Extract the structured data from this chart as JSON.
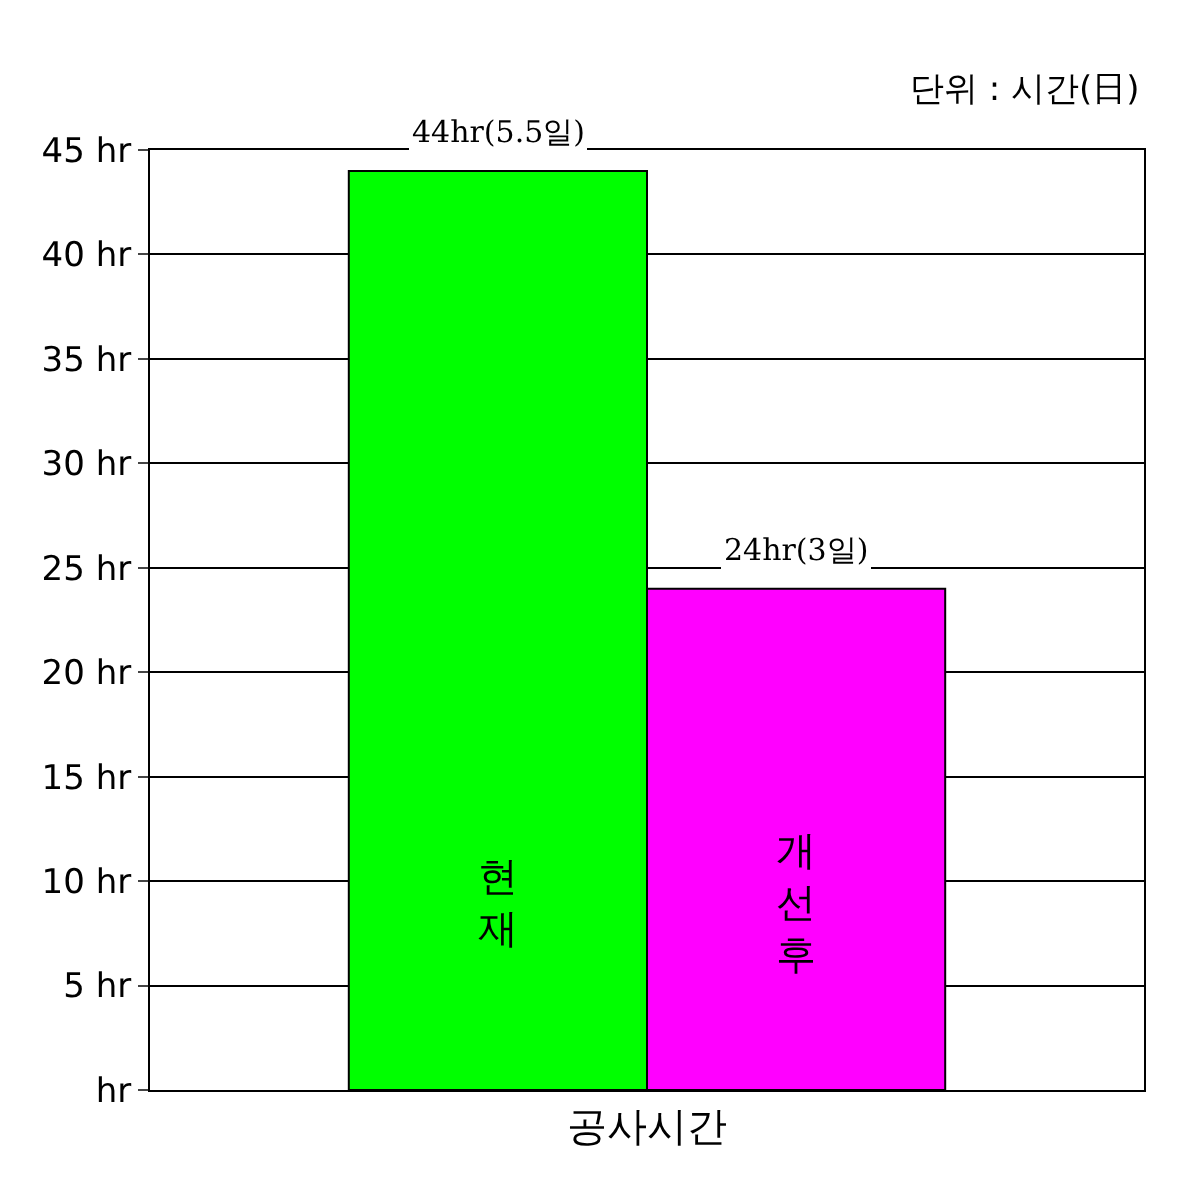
{
  "chart_data": {
    "type": "bar",
    "annotations": [
      "단위 : 시간(日)"
    ],
    "categories": [
      "공사시간"
    ],
    "series": [
      {
        "name": "현재",
        "color": "#00ff00",
        "values": [
          44
        ],
        "value_labels": [
          "44hr(5.5일)"
        ]
      },
      {
        "name": "개선후",
        "color": "#ff00ff",
        "values": [
          24
        ],
        "value_labels": [
          "24hr(3일)"
        ]
      }
    ],
    "ylim": [
      0,
      45
    ],
    "yticks": [
      {
        "value": 0,
        "label": "hr"
      },
      {
        "value": 5,
        "label": "5 hr"
      },
      {
        "value": 10,
        "label": "10 hr"
      },
      {
        "value": 15,
        "label": "15 hr"
      },
      {
        "value": 20,
        "label": "20 hr"
      },
      {
        "value": 25,
        "label": "25 hr"
      },
      {
        "value": 30,
        "label": "30 hr"
      },
      {
        "value": 35,
        "label": "35 hr"
      },
      {
        "value": 40,
        "label": "40 hr"
      },
      {
        "value": 45,
        "label": "45 hr"
      }
    ],
    "grid": "y",
    "legend": false
  }
}
